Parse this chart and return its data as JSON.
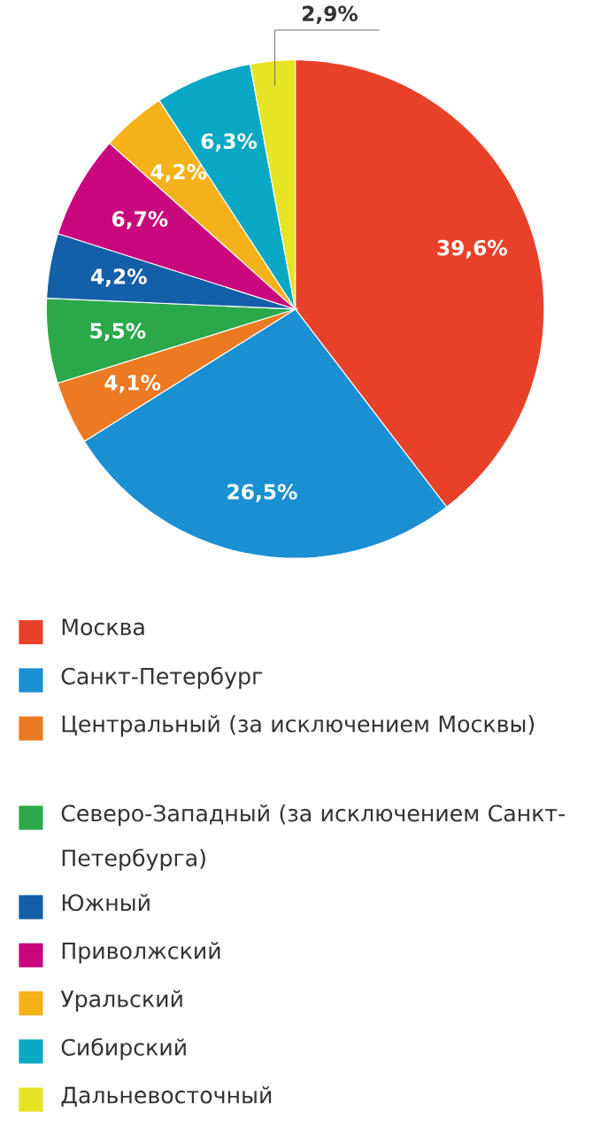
{
  "chart_data": {
    "type": "pie",
    "categories": [
      "Москва",
      "Санкт-Петербург",
      "Центральный (за исключением Москвы)",
      "Северо-Западный (за исключением Санкт-Петербурга)",
      "Южный",
      "Приволжский",
      "Уральский",
      "Сибирский",
      "Дальневосточный"
    ],
    "values": [
      39.6,
      26.5,
      4.1,
      5.5,
      4.2,
      6.7,
      4.2,
      6.3,
      2.9
    ],
    "colors": [
      "#e8412a",
      "#1a8fd2",
      "#ec7a22",
      "#2aa84a",
      "#135fa8",
      "#c8087c",
      "#f6b21a",
      "#0aa8c4",
      "#e6e424"
    ],
    "value_labels": [
      "39,6%",
      "26,5%",
      "4,1%",
      "5,5%",
      "4,2%",
      "6,7%",
      "4,2%",
      "6,3%",
      "2,9%"
    ],
    "legend": "bottom"
  }
}
